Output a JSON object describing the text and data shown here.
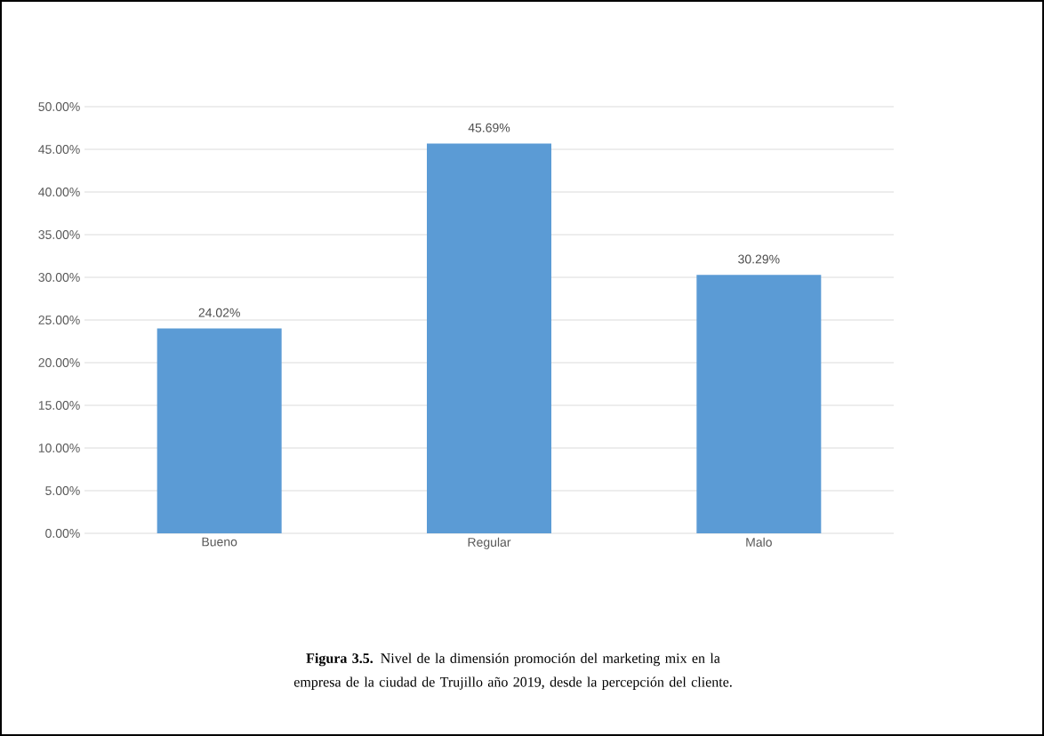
{
  "chart_data": {
    "type": "bar",
    "categories": [
      "Bueno",
      "Regular",
      "Malo"
    ],
    "values": [
      24.02,
      45.69,
      30.29
    ],
    "value_labels": [
      "24.02%",
      "45.69%",
      "30.29%"
    ],
    "color": "#5b9bd5",
    "ylim": [
      0,
      50
    ],
    "yticks": [
      {
        "value": 0,
        "label": "0.00%"
      },
      {
        "value": 5,
        "label": "5.00%"
      },
      {
        "value": 10,
        "label": "10.00%"
      },
      {
        "value": 15,
        "label": "15.00%"
      },
      {
        "value": 20,
        "label": "20.00%"
      },
      {
        "value": 25,
        "label": "25.00%"
      },
      {
        "value": 30,
        "label": "30.00%"
      },
      {
        "value": 35,
        "label": "35.00%"
      },
      {
        "value": 40,
        "label": "40.00%"
      },
      {
        "value": 45,
        "label": "45.00%"
      },
      {
        "value": 50,
        "label": "50.00%"
      }
    ],
    "grid": "y",
    "annotations": [
      "**Figura 3.5.** Nivel de la dimensión promoción del marketing mix en la empresa de la ciudad de Trujillo año 2019, desde la percepción del cliente."
    ]
  }
}
